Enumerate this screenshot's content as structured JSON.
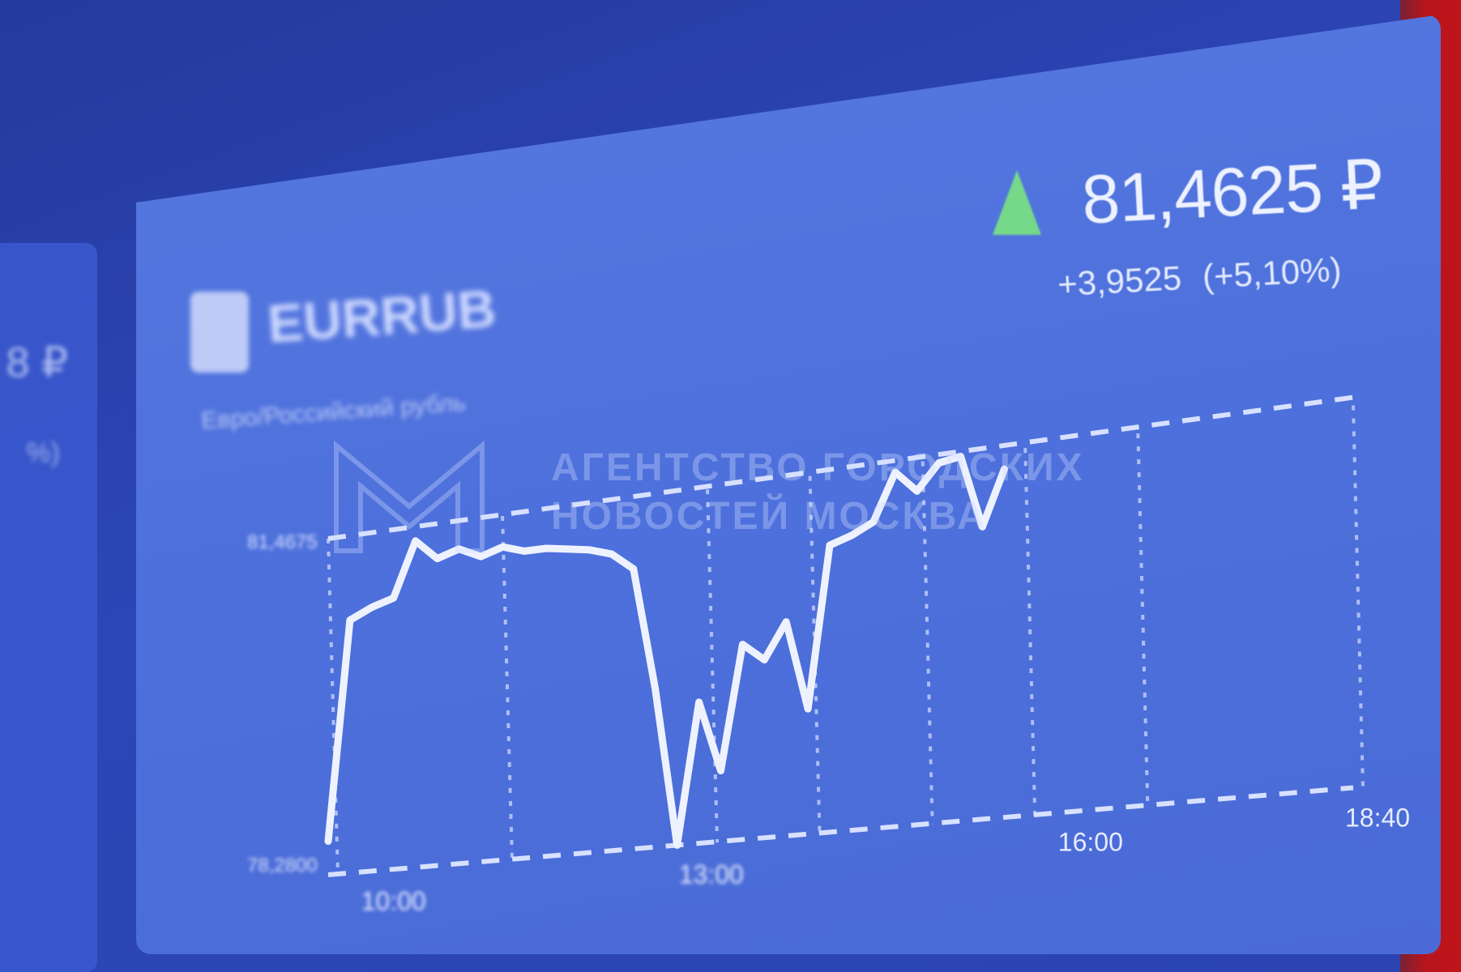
{
  "instrument": {
    "ticker": "EURRUB",
    "name": "Евро/Российский рубль",
    "price": "81,4625 ₽",
    "change_abs": "+3,9525",
    "change_pct": "(+5,10%)",
    "trend": "up",
    "trend_color": "#76d98a"
  },
  "left_panel": {
    "price": "8 ₽",
    "change": "%)"
  },
  "watermark": {
    "line1": "АГЕНТСТВО ГОРОДСКИХ",
    "line2": "НОВОСТЕЙ МОСКВА"
  },
  "chart_data": {
    "type": "line",
    "x_ticks": [
      "10:00",
      "13:00",
      "16:00",
      "18:40"
    ],
    "y_ticks": [
      "81,4675",
      "78,2800"
    ],
    "series": [
      {
        "values": [
          0.1,
          0.75,
          0.78,
          0.8,
          0.96,
          0.9,
          0.92,
          0.89,
          0.91,
          0.89,
          0.89,
          0.88,
          0.87,
          0.85,
          0.8,
          0.45,
          0.0,
          0.4,
          0.2,
          0.55,
          0.5,
          0.6,
          0.35,
          0.8,
          0.82,
          0.85,
          0.98,
          0.92,
          0.99,
          1.0,
          0.8,
          0.95
        ]
      }
    ],
    "grid": true,
    "line_color": "#eef2ff"
  }
}
